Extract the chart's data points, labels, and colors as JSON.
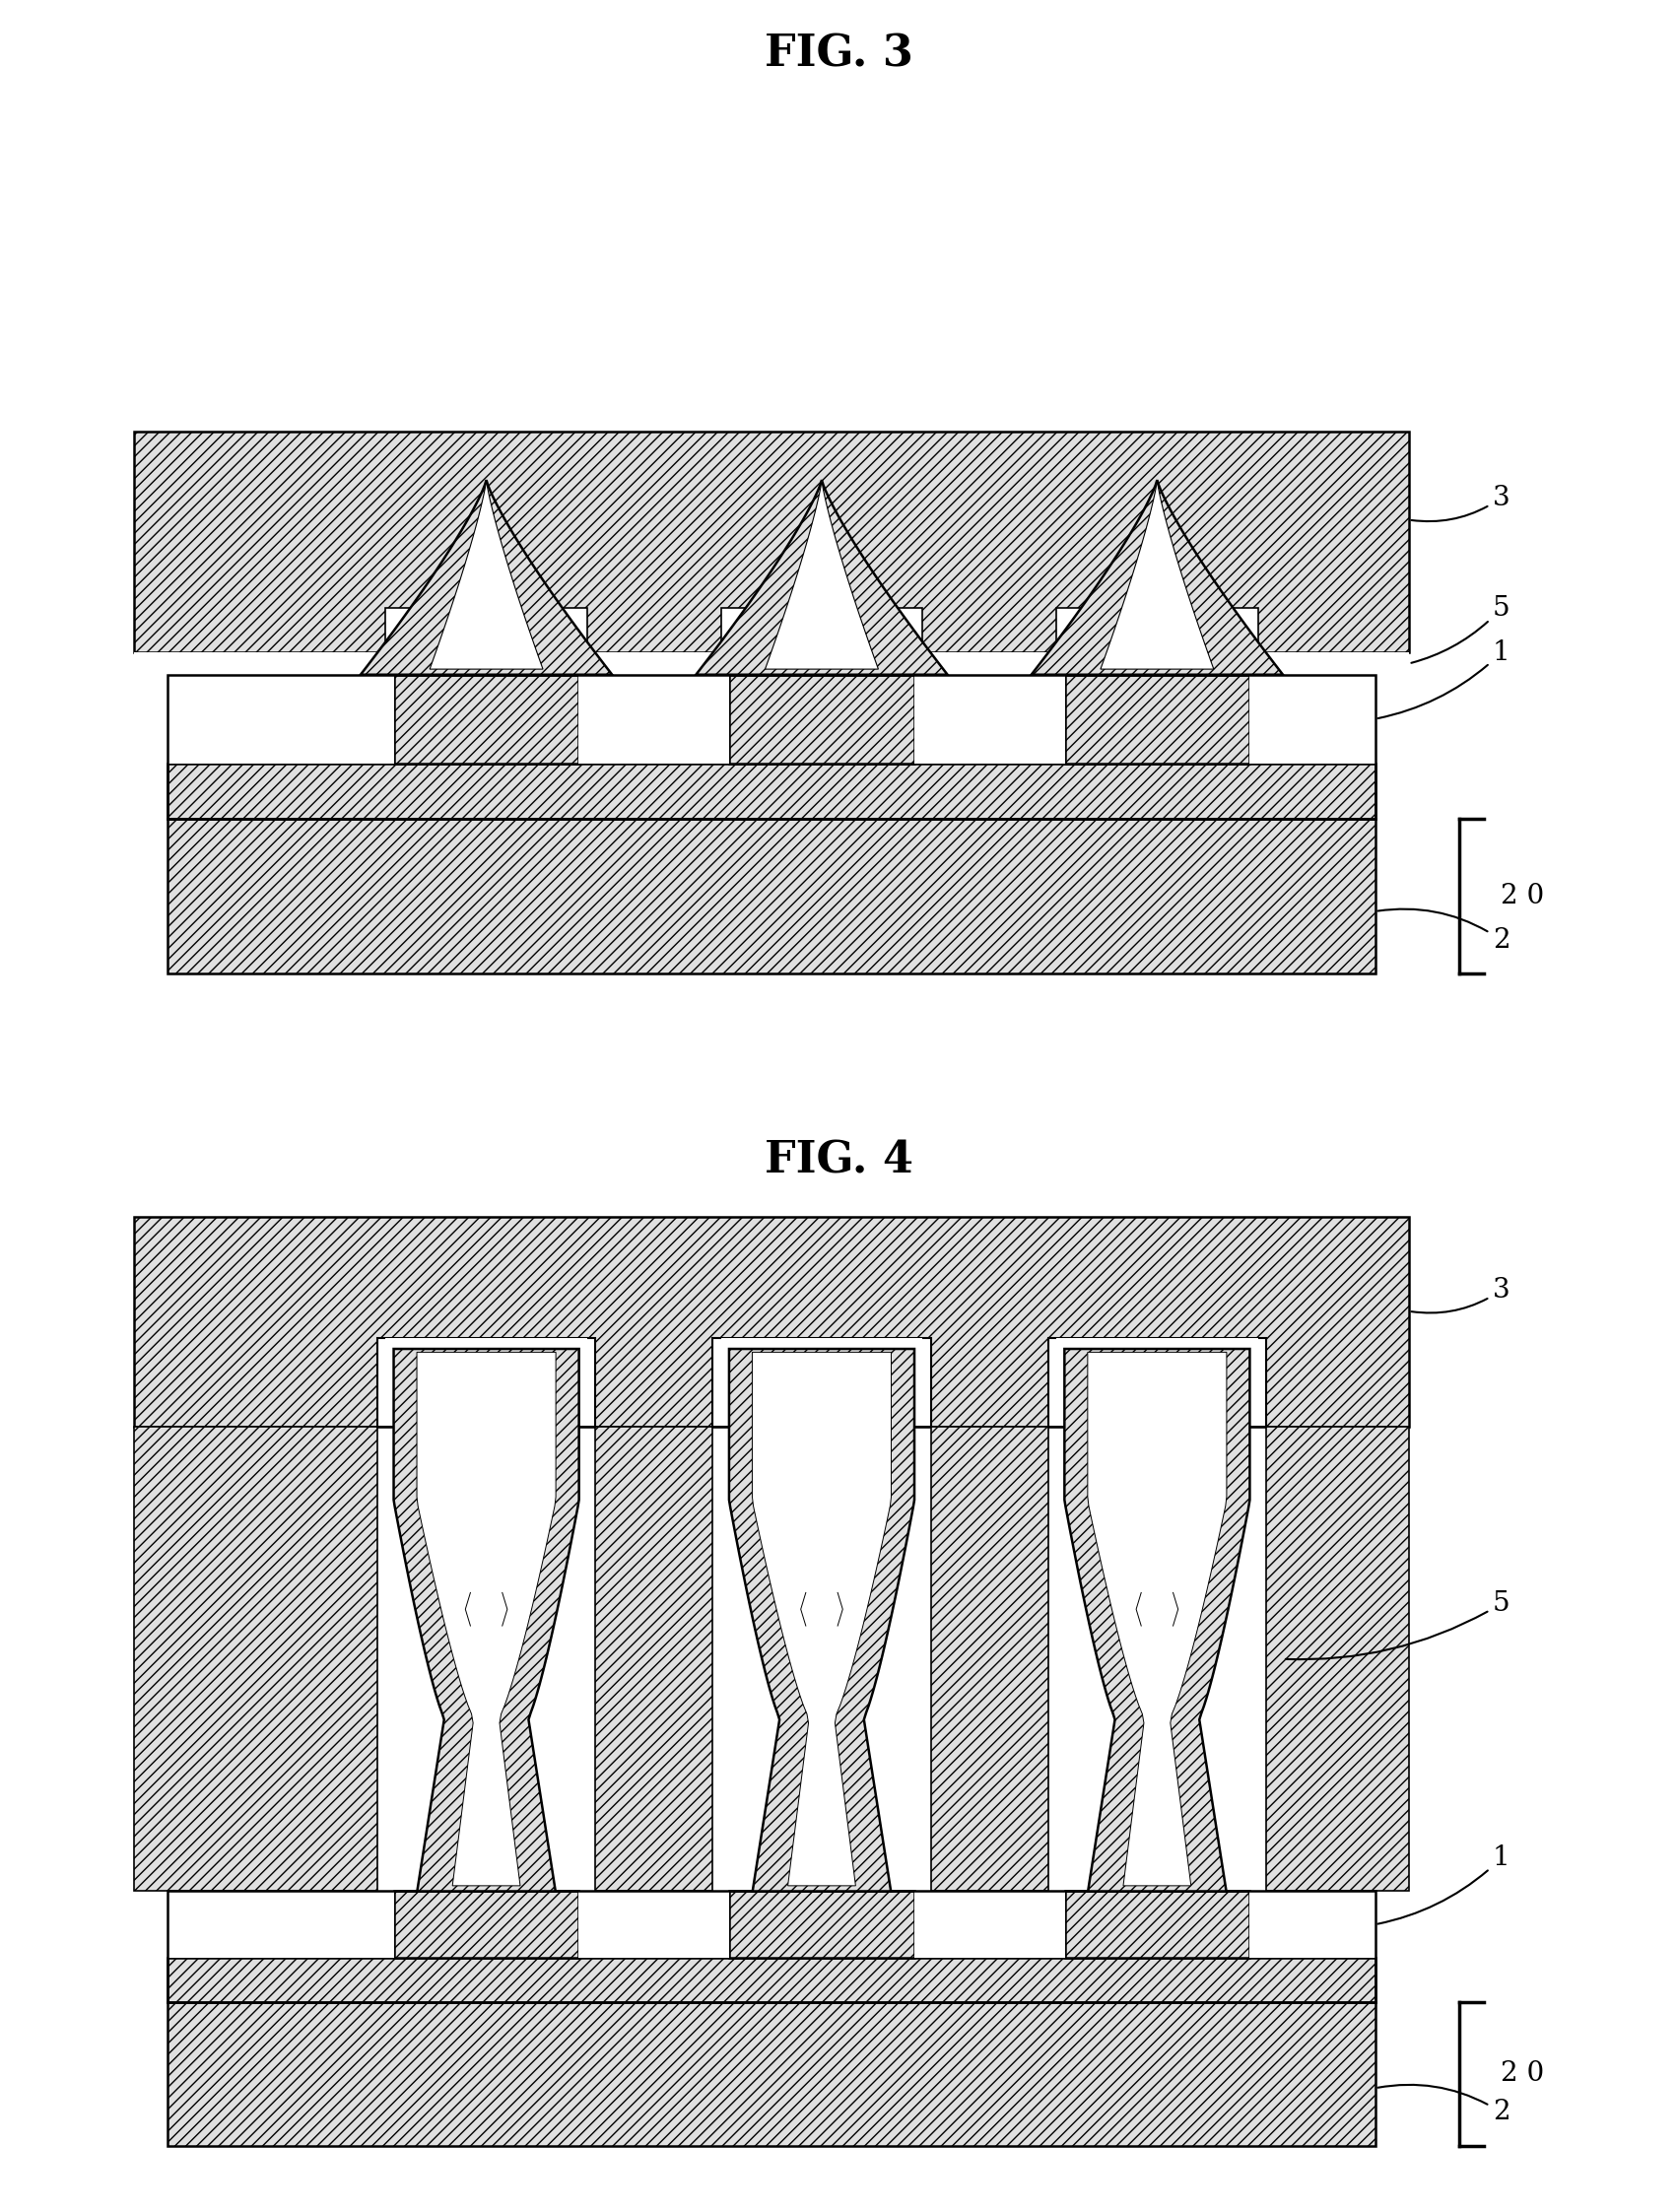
{
  "bg_color": "#ffffff",
  "line_color": "#000000",
  "hatch_fill": "#e0e0e0",
  "white": "#ffffff",
  "title_fig3": "FIG. 3",
  "title_fig4": "FIG. 4",
  "font_size_title": 32,
  "font_size_label": 20,
  "hatch": "///",
  "lw": 1.8
}
